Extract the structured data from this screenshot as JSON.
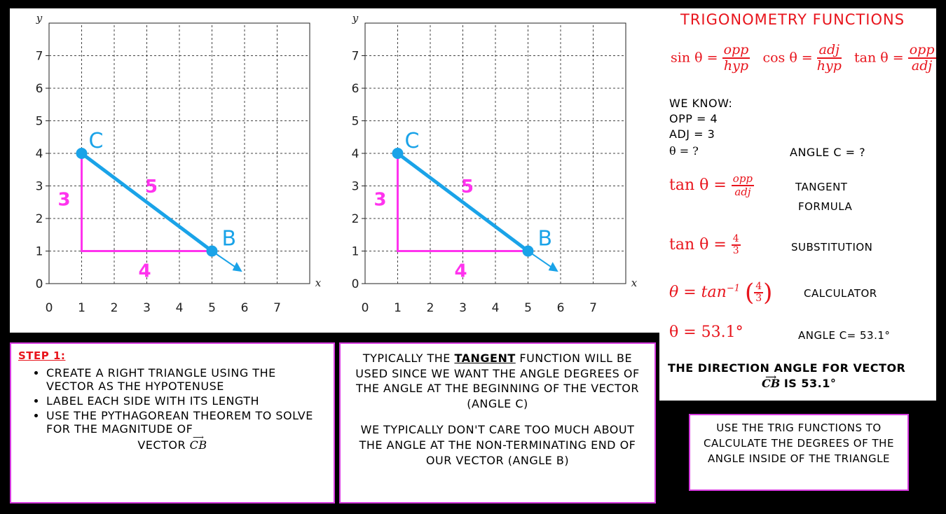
{
  "graphs": [
    {
      "name": "graph-left"
    },
    {
      "name": "graph-right"
    }
  ],
  "graph_labels": {
    "y_axis": "y",
    "x_axis": "x",
    "x_ticks": [
      "0",
      "1",
      "2",
      "3",
      "4",
      "5",
      "6",
      "7"
    ],
    "y_ticks": [
      "0",
      "1",
      "2",
      "3",
      "4",
      "5",
      "6",
      "7"
    ],
    "point_c": "C",
    "point_b": "B",
    "side_vertical": "3",
    "side_horizontal": "4",
    "side_hypotenuse": "5"
  },
  "geometry_data": {
    "point_c": [
      1,
      4
    ],
    "point_b": [
      5,
      1
    ],
    "right_angle_vertex": [
      1,
      1
    ],
    "arrow_tip": [
      5.8,
      0.45
    ]
  },
  "colors": {
    "vector": "#1aa3e8",
    "triangle": "#ff33ee",
    "red": "#e8141c",
    "border": "#d63adf"
  },
  "trig": {
    "title": "TRIGONOMETRY FUNCTIONS",
    "sin": "sin θ =",
    "cos": "cos θ =",
    "tan": "tan θ =",
    "opp": "opp",
    "hyp": "hyp",
    "adj": "adj",
    "we_know": "WE KNOW:",
    "opp_val": "OPP = 4",
    "adj_val": "ADJ = 3",
    "theta_q": "θ = ?",
    "angle_c_q": "ANGLE C = ?",
    "tan_formula": "tan θ =",
    "tangent_formula_1": "TANGENT",
    "tangent_formula_2": "FORMULA",
    "tan_sub": "tan θ =",
    "four": "4",
    "three": "3",
    "substitution": "SUBSTITUTION",
    "theta_eq": "θ = ",
    "tan_inv": "tan",
    "inv_exp": "−1",
    "calculator": "CALCULATOR",
    "theta_result": "θ = 53.1°",
    "angle_c_result": "ANGLE C= 53.1°",
    "direction_1": "THE DIRECTION ANGLE FOR VECTOR",
    "direction_vec": "CB",
    "direction_2": "IS 53.1°"
  },
  "step1": {
    "heading": "STEP 1:",
    "items": [
      "CREATE A RIGHT TRIANGLE USING THE VECTOR AS THE HYPOTENUSE",
      "LABEL EACH SIDE WITH ITS LENGTH",
      "USE THE PYTHAGOREAN THEOREM TO SOLVE FOR THE MAGNITUDE OF"
    ],
    "vector_label": "VECTOR",
    "vector_name": "CB"
  },
  "middle": {
    "p1_a": "TYPICALLY THE ",
    "p1_b": "TANGENT",
    "p1_c": " FUNCTION WILL BE USED SINCE WE WANT THE ANGLE DEGREES OF THE ANGLE AT THE BEGINNING OF THE VECTOR (ANGLE C)",
    "p2": "WE TYPICALLY DON'T CARE TOO MUCH ABOUT THE ANGLE AT THE NON-TERMINATING END OF OUR VECTOR (ANGLE B)"
  },
  "right_box": {
    "text": "USE THE TRIG FUNCTIONS TO CALCULATE THE DEGREES OF THE ANGLE INSIDE OF THE TRIANGLE"
  }
}
